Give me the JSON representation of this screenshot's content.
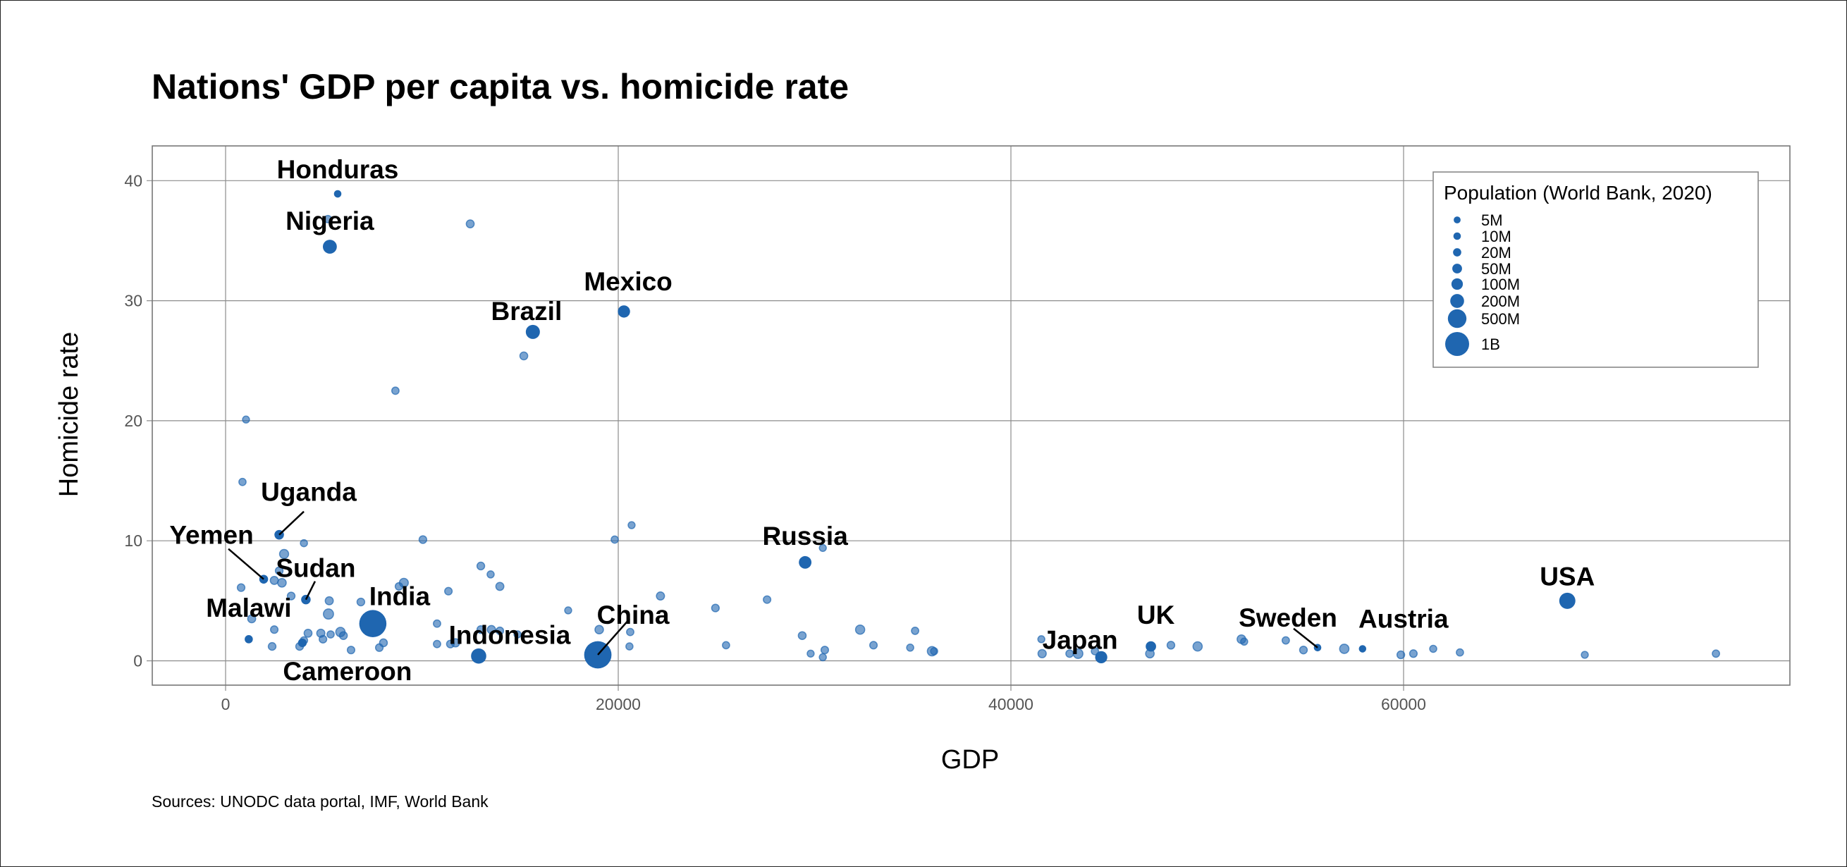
{
  "chart_data": {
    "type": "scatter",
    "title": "Nations' GDP per capita vs. homicide rate",
    "xlabel": "GDP",
    "ylabel": "Homicide rate",
    "caption": "Sources: UNODC data portal, IMF, World Bank",
    "xlim": [
      -3800,
      79000
    ],
    "ylim": [
      -2,
      42.9
    ],
    "xticks": [
      0,
      20000,
      40000,
      60000
    ],
    "xtick_labels": [
      "0",
      "20000",
      "40000",
      "60000"
    ],
    "yticks": [
      0,
      10,
      20,
      30,
      40
    ],
    "ytick_labels": [
      "0",
      "10",
      "20",
      "30",
      "40"
    ],
    "grid": true,
    "colors": {
      "point": "#1f66b0",
      "highlight": "#1f66b0"
    },
    "legend": {
      "title": "Population (World Bank, 2020)",
      "placement": "top-right",
      "entries": [
        {
          "label": "5M",
          "pop_m": 5
        },
        {
          "label": "10M",
          "pop_m": 10
        },
        {
          "label": "20M",
          "pop_m": 20
        },
        {
          "label": "50M",
          "pop_m": 50
        },
        {
          "label": "100M",
          "pop_m": 100
        },
        {
          "label": "200M",
          "pop_m": 200
        },
        {
          "label": "500M",
          "pop_m": 500
        },
        {
          "label": "1B",
          "pop_m": 1000
        }
      ]
    },
    "labelled": [
      {
        "name": "Honduras",
        "gdp": 5710,
        "rate": 38.9,
        "pop_m": 10,
        "label_dx": 0,
        "label_dy": -1,
        "leader": false
      },
      {
        "name": "Nigeria",
        "gdp": 5310,
        "rate": 34.5,
        "pop_m": 206,
        "leader": false
      },
      {
        "name": "Mexico",
        "gdp": 20290,
        "rate": 29.1,
        "pop_m": 129,
        "leader": false
      },
      {
        "name": "Brazil",
        "gdp": 15650,
        "rate": 27.4,
        "pop_m": 213,
        "leader": false
      },
      {
        "name": "Uganda",
        "gdp": 2730,
        "rate": 10.5,
        "pop_m": 46,
        "leader": true
      },
      {
        "name": "Yemen",
        "gdp": 1940,
        "rate": 6.8,
        "pop_m": 30,
        "leader": true
      },
      {
        "name": "Sudan",
        "gdp": 4090,
        "rate": 5.1,
        "pop_m": 44,
        "leader": true
      },
      {
        "name": "Russia",
        "gdp": 29520,
        "rate": 8.2,
        "pop_m": 144,
        "leader": false
      },
      {
        "name": "USA",
        "gdp": 68340,
        "rate": 5.0,
        "pop_m": 331,
        "leader": false
      },
      {
        "name": "India",
        "gdp": 7500,
        "rate": 3.1,
        "pop_m": 1380,
        "leader": false
      },
      {
        "name": "Malawi",
        "gdp": 1180,
        "rate": 1.8,
        "pop_m": 19,
        "leader": false
      },
      {
        "name": "China",
        "gdp": 18960,
        "rate": 0.5,
        "pop_m": 1402,
        "leader": true
      },
      {
        "name": "Indonesia",
        "gdp": 12890,
        "rate": 0.4,
        "pop_m": 274,
        "leader": false
      },
      {
        "name": "Cameroon",
        "gdp": 3910,
        "rate": 1.5,
        "pop_m": 27,
        "leader": false
      },
      {
        "name": "Japan",
        "gdp": 44600,
        "rate": 0.3,
        "pop_m": 126,
        "leader": false
      },
      {
        "name": "UK",
        "gdp": 47130,
        "rate": 1.2,
        "pop_m": 67,
        "leader": false
      },
      {
        "name": "Sweden",
        "gdp": 55620,
        "rate": 1.1,
        "pop_m": 10,
        "leader": true
      },
      {
        "name": "Austria",
        "gdp": 57910,
        "rate": 1.0,
        "pop_m": 9,
        "leader": false
      }
    ],
    "others": [
      {
        "gdp": 5210,
        "rate": 36.8,
        "pop_m": 9
      },
      {
        "gdp": 12460,
        "rate": 36.4,
        "pop_m": 15
      },
      {
        "gdp": 15190,
        "rate": 25.4,
        "pop_m": 15
      },
      {
        "gdp": 8650,
        "rate": 22.5,
        "pop_m": 8
      },
      {
        "gdp": 1040,
        "rate": 20.1,
        "pop_m": 5
      },
      {
        "gdp": 860,
        "rate": 14.9,
        "pop_m": 7
      },
      {
        "gdp": 3990,
        "rate": 9.8,
        "pop_m": 6
      },
      {
        "gdp": 10050,
        "rate": 10.1,
        "pop_m": 12
      },
      {
        "gdp": 2980,
        "rate": 8.9,
        "pop_m": 35
      },
      {
        "gdp": 2730,
        "rate": 7.5,
        "pop_m": 12
      },
      {
        "gdp": 2480,
        "rate": 6.7,
        "pop_m": 17
      },
      {
        "gdp": 2870,
        "rate": 6.5,
        "pop_m": 25
      },
      {
        "gdp": 790,
        "rate": 6.1,
        "pop_m": 11
      },
      {
        "gdp": 3340,
        "rate": 5.4,
        "pop_m": 12
      },
      {
        "gdp": 13000,
        "rate": 7.9,
        "pop_m": 12
      },
      {
        "gdp": 13500,
        "rate": 7.2,
        "pop_m": 6
      },
      {
        "gdp": 13970,
        "rate": 6.2,
        "pop_m": 17
      },
      {
        "gdp": 9080,
        "rate": 6.5,
        "pop_m": 32
      },
      {
        "gdp": 8830,
        "rate": 6.2,
        "pop_m": 10
      },
      {
        "gdp": 11350,
        "rate": 5.8,
        "pop_m": 10
      },
      {
        "gdp": 5280,
        "rate": 5.0,
        "pop_m": 17
      },
      {
        "gdp": 5240,
        "rate": 3.9,
        "pop_m": 60
      },
      {
        "gdp": 6890,
        "rate": 4.9,
        "pop_m": 12
      },
      {
        "gdp": 10770,
        "rate": 3.1,
        "pop_m": 8
      },
      {
        "gdp": 1330,
        "rate": 3.5,
        "pop_m": 16
      },
      {
        "gdp": 2480,
        "rate": 2.6,
        "pop_m": 10
      },
      {
        "gdp": 2370,
        "rate": 1.2,
        "pop_m": 12
      },
      {
        "gdp": 4200,
        "rate": 2.3,
        "pop_m": 15
      },
      {
        "gdp": 4850,
        "rate": 2.3,
        "pop_m": 18
      },
      {
        "gdp": 4960,
        "rate": 1.8,
        "pop_m": 11
      },
      {
        "gdp": 5350,
        "rate": 2.2,
        "pop_m": 7
      },
      {
        "gdp": 5850,
        "rate": 2.4,
        "pop_m": 40
      },
      {
        "gdp": 6000,
        "rate": 2.1,
        "pop_m": 14
      },
      {
        "gdp": 3770,
        "rate": 1.2,
        "pop_m": 12
      },
      {
        "gdp": 3990,
        "rate": 1.7,
        "pop_m": 9
      },
      {
        "gdp": 6390,
        "rate": 0.9,
        "pop_m": 10
      },
      {
        "gdp": 8040,
        "rate": 1.5,
        "pop_m": 14
      },
      {
        "gdp": 7830,
        "rate": 1.1,
        "pop_m": 11
      },
      {
        "gdp": 10770,
        "rate": 1.4,
        "pop_m": 8
      },
      {
        "gdp": 11450,
        "rate": 1.4,
        "pop_m": 12
      },
      {
        "gdp": 11710,
        "rate": 1.5,
        "pop_m": 20
      },
      {
        "gdp": 13000,
        "rate": 2.6,
        "pop_m": 12
      },
      {
        "gdp": 13540,
        "rate": 2.6,
        "pop_m": 20
      },
      {
        "gdp": 13970,
        "rate": 2.5,
        "pop_m": 10
      },
      {
        "gdp": 14870,
        "rate": 2.2,
        "pop_m": 6
      },
      {
        "gdp": 20680,
        "rate": 11.3,
        "pop_m": 5
      },
      {
        "gdp": 19820,
        "rate": 10.1,
        "pop_m": 7
      },
      {
        "gdp": 17450,
        "rate": 4.2,
        "pop_m": 5
      },
      {
        "gdp": 22150,
        "rate": 5.4,
        "pop_m": 18
      },
      {
        "gdp": 24950,
        "rate": 4.4,
        "pop_m": 11
      },
      {
        "gdp": 27580,
        "rate": 5.1,
        "pop_m": 10
      },
      {
        "gdp": 19030,
        "rate": 2.6,
        "pop_m": 24
      },
      {
        "gdp": 20610,
        "rate": 2.4,
        "pop_m": 8
      },
      {
        "gdp": 20570,
        "rate": 1.2,
        "pop_m": 6
      },
      {
        "gdp": 25490,
        "rate": 1.3,
        "pop_m": 7
      },
      {
        "gdp": 30420,
        "rate": 9.4,
        "pop_m": 5
      },
      {
        "gdp": 29370,
        "rate": 2.1,
        "pop_m": 14
      },
      {
        "gdp": 29800,
        "rate": 0.6,
        "pop_m": 5
      },
      {
        "gdp": 30520,
        "rate": 0.9,
        "pop_m": 10
      },
      {
        "gdp": 30420,
        "rate": 0.3,
        "pop_m": 6
      },
      {
        "gdp": 32320,
        "rate": 2.6,
        "pop_m": 38
      },
      {
        "gdp": 33000,
        "rate": 1.3,
        "pop_m": 10
      },
      {
        "gdp": 35120,
        "rate": 2.5,
        "pop_m": 8
      },
      {
        "gdp": 34870,
        "rate": 1.1,
        "pop_m": 6
      },
      {
        "gdp": 35980,
        "rate": 0.8,
        "pop_m": 40
      },
      {
        "gdp": 36090,
        "rate": 0.8,
        "pop_m": 6
      },
      {
        "gdp": 41550,
        "rate": 1.8,
        "pop_m": 5
      },
      {
        "gdp": 41590,
        "rate": 0.6,
        "pop_m": 20
      },
      {
        "gdp": 42990,
        "rate": 0.6,
        "pop_m": 10
      },
      {
        "gdp": 43420,
        "rate": 0.6,
        "pop_m": 47
      },
      {
        "gdp": 44280,
        "rate": 0.8,
        "pop_m": 8
      },
      {
        "gdp": 47080,
        "rate": 0.6,
        "pop_m": 25
      },
      {
        "gdp": 48150,
        "rate": 1.3,
        "pop_m": 12
      },
      {
        "gdp": 49510,
        "rate": 1.2,
        "pop_m": 38
      },
      {
        "gdp": 51740,
        "rate": 1.8,
        "pop_m": 26
      },
      {
        "gdp": 51880,
        "rate": 1.6,
        "pop_m": 6
      },
      {
        "gdp": 54000,
        "rate": 1.7,
        "pop_m": 8
      },
      {
        "gdp": 54900,
        "rate": 0.9,
        "pop_m": 12
      },
      {
        "gdp": 56980,
        "rate": 1.0,
        "pop_m": 40
      },
      {
        "gdp": 59860,
        "rate": 0.5,
        "pop_m": 12
      },
      {
        "gdp": 60500,
        "rate": 0.6,
        "pop_m": 11
      },
      {
        "gdp": 61510,
        "rate": 1.0,
        "pop_m": 6
      },
      {
        "gdp": 62870,
        "rate": 0.7,
        "pop_m": 7
      },
      {
        "gdp": 69230,
        "rate": 0.5,
        "pop_m": 5
      },
      {
        "gdp": 75910,
        "rate": 0.6,
        "pop_m": 8
      }
    ]
  }
}
